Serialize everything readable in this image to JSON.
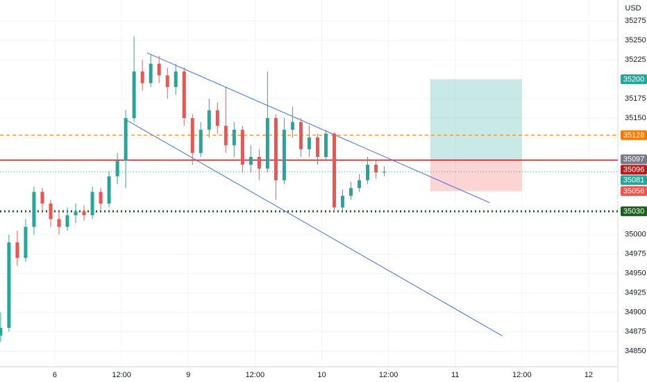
{
  "chart_data": {
    "type": "candlestick",
    "currency": "USD",
    "x": [
      -9.75,
      -8.25,
      -6.75,
      -5.25,
      -3.75,
      -2.25,
      -0.75,
      0.75,
      2.25,
      3.75,
      5.25,
      6.75,
      8.25,
      9.75,
      11.25,
      12.75,
      14.25,
      15.75,
      17.25,
      18.75,
      20.25,
      21.75,
      23.25,
      24.75,
      26.25,
      27.75,
      29.25,
      30.75,
      32.25,
      33.75,
      35.25,
      36.75,
      38.25,
      39.75,
      41.25,
      42.75,
      44.25,
      45.75,
      47.25,
      48.75,
      50.25,
      51.75,
      53.25,
      54.75,
      56.25,
      57.75,
      59.25
    ],
    "open": [
      34870,
      34880,
      34990,
      34970,
      35010,
      35055,
      35040,
      35020,
      35010,
      35025,
      35030,
      35025,
      35055,
      35040,
      35075,
      35095,
      35150,
      35210,
      35195,
      35220,
      35205,
      35190,
      35210,
      35150,
      35105,
      35135,
      35160,
      35140,
      35115,
      35135,
      35090,
      35100,
      35085,
      35150,
      35070,
      35135,
      35145,
      35110,
      35125,
      35100,
      35130,
      35035,
      35050,
      35060,
      35070,
      35090,
      35080
    ],
    "high": [
      34900,
      35000,
      35005,
      35020,
      35062,
      35060,
      35045,
      35030,
      35035,
      35040,
      35038,
      35062,
      35060,
      35082,
      35105,
      35160,
      35255,
      35225,
      35232,
      35230,
      35215,
      35220,
      35215,
      35155,
      35145,
      35175,
      35170,
      35190,
      35145,
      35140,
      35115,
      35110,
      35210,
      35155,
      35150,
      35165,
      35150,
      35140,
      35130,
      35135,
      35132,
      35058,
      35068,
      35078,
      35100,
      35095,
      35088
    ],
    "low": [
      34862,
      34875,
      34960,
      34965,
      35000,
      35030,
      35010,
      35000,
      35005,
      35015,
      35018,
      35020,
      35032,
      35035,
      35065,
      35060,
      35145,
      35185,
      35190,
      35195,
      35175,
      35180,
      35140,
      35090,
      35100,
      35125,
      35130,
      35105,
      35100,
      35080,
      35080,
      35070,
      35080,
      35045,
      35065,
      35125,
      35100,
      35100,
      35090,
      35095,
      35030,
      35030,
      35045,
      35055,
      35065,
      35072,
      35075
    ],
    "close": [
      34880,
      34990,
      34970,
      35010,
      35055,
      35040,
      35020,
      35010,
      35025,
      35030,
      35025,
      35055,
      35040,
      35075,
      35095,
      35150,
      35210,
      35195,
      35220,
      35205,
      35190,
      35210,
      35150,
      35105,
      35135,
      35160,
      35140,
      35115,
      35135,
      35090,
      35100,
      35085,
      35150,
      35070,
      35135,
      35145,
      35110,
      35125,
      35100,
      35130,
      35035,
      35050,
      35060,
      35070,
      35090,
      35080,
      35081
    ],
    "up_color": "#26a69a",
    "down_color": "#ef5350",
    "xlim": [
      -9.86,
      101.25
    ],
    "ylim": [
      34830,
      35302
    ],
    "xticks": [
      {
        "value": 0,
        "label": "6"
      },
      {
        "value": 12,
        "label": "12:00"
      },
      {
        "value": 24,
        "label": "9"
      },
      {
        "value": 36,
        "label": "12:00"
      },
      {
        "value": 48,
        "label": "10"
      },
      {
        "value": 60,
        "label": "12:00"
      },
      {
        "value": 72,
        "label": "11"
      },
      {
        "value": 84,
        "label": "12:00"
      },
      {
        "value": 96,
        "label": "12"
      }
    ],
    "yticks": [
      35275,
      35250,
      35225,
      35175,
      35150,
      35000,
      34975,
      34950,
      34925,
      34900,
      34875,
      34850
    ],
    "grid": true,
    "trendlines": [
      {
        "x": [
          16.6,
          78.25
        ],
        "y": [
          35234,
          35041
        ],
        "color": "#3d6fe0"
      },
      {
        "x": [
          13,
          80.4
        ],
        "y": [
          35147,
          34870
        ],
        "color": "#3d6fe0"
      }
    ],
    "position": {
      "x": [
        67.5,
        84
      ],
      "target": 35200,
      "entry": 35096,
      "stop": 35056,
      "target_color": "#26a69a",
      "stop_color": "#ef5350"
    },
    "price_lines": [
      {
        "value": 35128,
        "color": "#f57c00",
        "style": "dashed"
      },
      {
        "value": 35097,
        "color": "#787b86",
        "style": "none"
      },
      {
        "value": 35096,
        "color": "#b71c1c",
        "style": "solid"
      },
      {
        "value": 35081,
        "color": "#26a69a",
        "style": "dotted"
      },
      {
        "value": 35030,
        "color": "#1b5e20",
        "style": "heavy-dotted"
      }
    ]
  }
}
